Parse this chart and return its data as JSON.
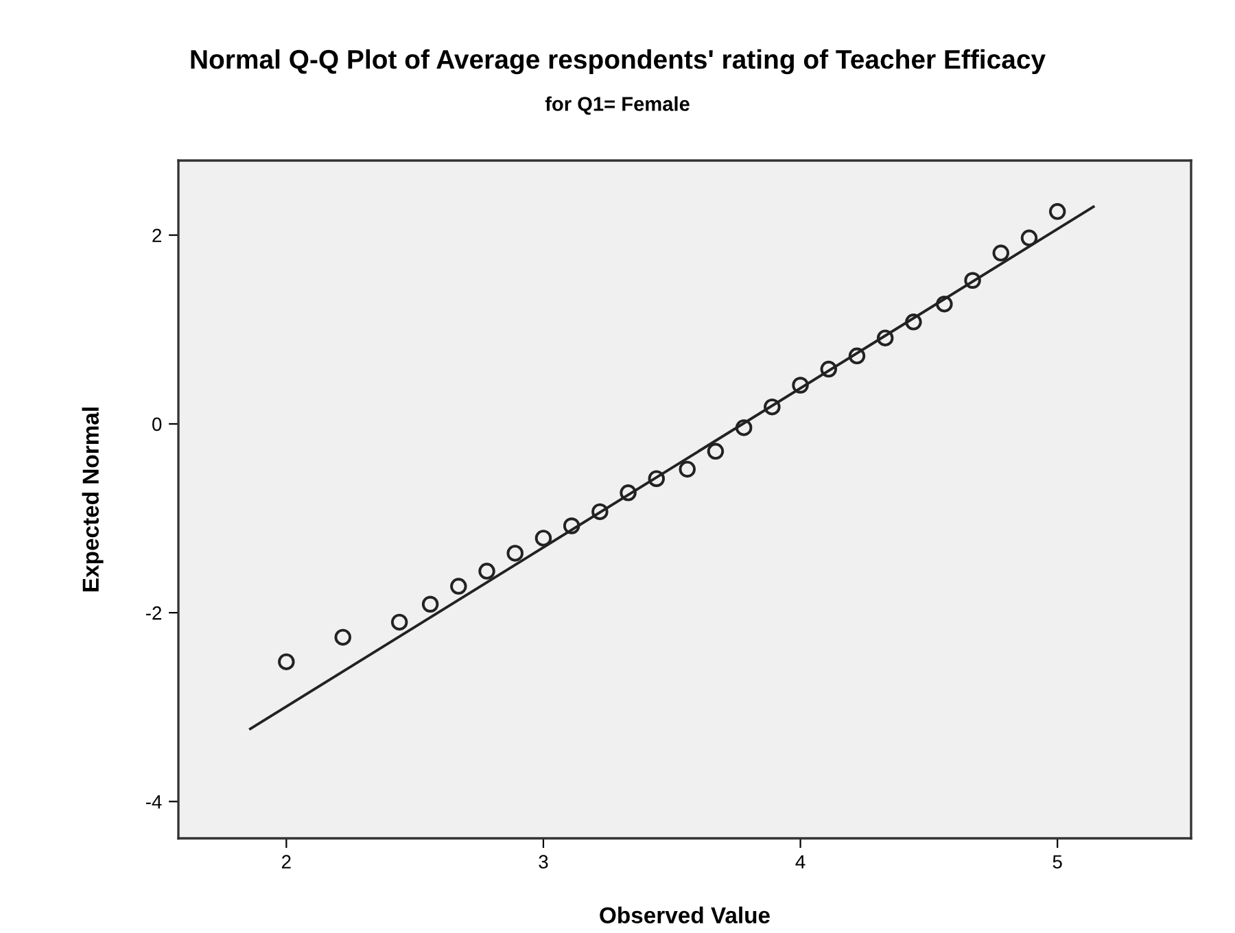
{
  "chart_data": {
    "type": "scatter",
    "title": "Normal Q-Q Plot of Average respondents' rating of Teacher Efficacy",
    "subtitle": "for Q1= Female",
    "xlabel": "Observed Value",
    "ylabel": "Expected Normal",
    "xlim": [
      1.58,
      5.52
    ],
    "ylim": [
      -4.39,
      2.79
    ],
    "xticks": [
      2,
      3,
      4,
      5
    ],
    "yticks": [
      -4,
      -2,
      0,
      2
    ],
    "grid": false,
    "legend": false,
    "series": [
      {
        "marker": "circle",
        "color": "#222222",
        "x": [
          2.0,
          2.22,
          2.44,
          2.56,
          2.67,
          2.78,
          2.89,
          3.0,
          3.11,
          3.22,
          3.33,
          3.44,
          3.56,
          3.67,
          3.78,
          3.89,
          4.0,
          4.11,
          4.22,
          4.33,
          4.44,
          4.56,
          4.67,
          4.78,
          4.89,
          5.0
        ],
        "values": [
          -2.52,
          -2.26,
          -2.1,
          -1.91,
          -1.72,
          -1.56,
          -1.37,
          -1.21,
          -1.08,
          -0.93,
          -0.73,
          -0.58,
          -0.48,
          -0.29,
          -0.04,
          0.18,
          0.41,
          0.58,
          0.72,
          0.91,
          1.08,
          1.27,
          1.52,
          1.81,
          1.97,
          2.25
        ]
      },
      {
        "type": "line",
        "line_style": "solid",
        "color": "#222222",
        "x": [
          1.86,
          5.14
        ],
        "values": [
          -3.23,
          2.3
        ]
      }
    ]
  }
}
